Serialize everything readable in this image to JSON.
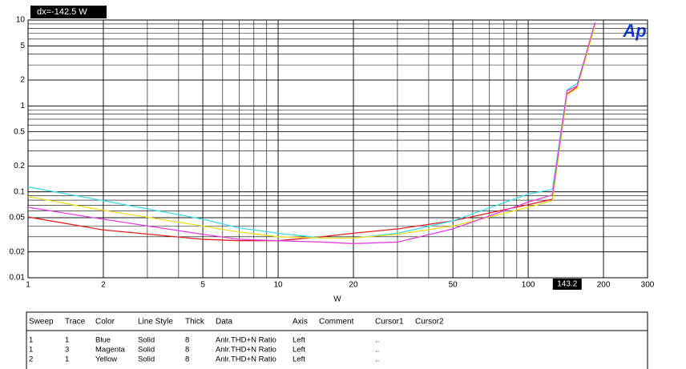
{
  "chart_data": {
    "type": "line",
    "x_label": "W",
    "cursor_readout": "dx=-142.5   W",
    "cursor_x": 143.2,
    "logo": "Ap",
    "x": [
      1,
      2,
      5,
      7,
      10,
      15,
      20,
      30,
      50,
      100,
      125,
      143,
      157,
      185
    ],
    "series": [
      {
        "color": "#e02020",
        "values": [
          0.051,
          0.036,
          0.028,
          0.027,
          0.027,
          0.03,
          0.033,
          0.037,
          0.046,
          0.071,
          0.082,
          1.38,
          1.67,
          9.0
        ]
      },
      {
        "color": "#40dce8",
        "values": [
          0.114,
          0.079,
          0.048,
          0.038,
          0.033,
          0.029,
          0.029,
          0.033,
          0.046,
          0.094,
          0.107,
          1.54,
          1.83,
          9.0
        ]
      },
      {
        "color": "#f0dc20",
        "values": [
          0.088,
          0.061,
          0.04,
          0.034,
          0.03,
          0.029,
          0.029,
          0.032,
          0.04,
          0.066,
          0.079,
          1.35,
          1.6,
          8.6
        ]
      },
      {
        "color": "#e040e0",
        "values": [
          0.066,
          0.048,
          0.032,
          0.028,
          0.027,
          0.026,
          0.025,
          0.026,
          0.037,
          0.076,
          0.092,
          1.5,
          1.71,
          9.4
        ]
      }
    ],
    "xlim": [
      1,
      300
    ],
    "ylim": [
      0.01,
      10
    ],
    "log_x": true,
    "log_y": true,
    "grid": true,
    "xticks": [
      1,
      2,
      5,
      10,
      20,
      50,
      100,
      200,
      300
    ],
    "yticks": [
      0.01,
      0.02,
      0.05,
      0.1,
      0.2,
      0.5,
      1,
      2,
      5,
      10
    ]
  },
  "legend_table": {
    "headers": [
      "Sweep",
      "Trace",
      "Color",
      "Line Style",
      "Thick",
      "Data",
      "Axis",
      "Comment",
      "Cursor1",
      "Cursor2"
    ],
    "rows": [
      {
        "Sweep": "1",
        "Trace": "1",
        "Color": "Blue",
        "Line Style": "Solid",
        "Thick": "8",
        "Data": "Anlr.THD+N Ratio",
        "Axis": "Left",
        "Cursor1": ".."
      },
      {
        "Sweep": "1",
        "Trace": "3",
        "Color": "Magenta",
        "Line Style": "Solid",
        "Thick": "8",
        "Data": "Anlr.THD+N Ratio",
        "Axis": "Left",
        "Cursor1": ".."
      },
      {
        "Sweep": "2",
        "Trace": "1",
        "Color": "Yellow",
        "Line Style": "Solid",
        "Thick": "8",
        "Data": "Anlr.THD+N Ratio",
        "Axis": "Left",
        "Cursor1": ".."
      }
    ]
  }
}
